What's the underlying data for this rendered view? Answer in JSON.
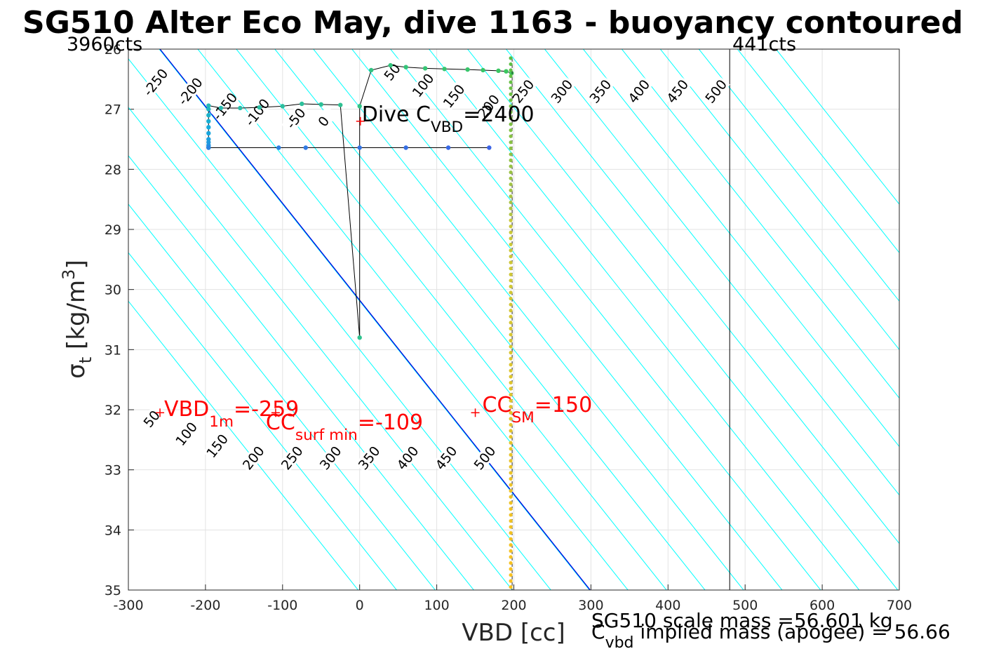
{
  "chart_data": {
    "type": "scatter",
    "title": "SG510 Alter Eco May, dive 1163 - buoyancy contoured",
    "xlabel": "VBD [cc]",
    "ylabel_main": "σ",
    "ylabel_sub": "t",
    "ylabel_unit": "[kg/m",
    "ylabel_sup": "3",
    "ylabel_close": "]",
    "xlim": [
      -300,
      700
    ],
    "ylim": [
      26,
      35
    ],
    "y_reversed": true,
    "grid": true,
    "xticks": [
      -300,
      -200,
      -100,
      0,
      100,
      200,
      300,
      400,
      500,
      600,
      700
    ],
    "yticks": [
      26,
      27,
      28,
      29,
      30,
      31,
      32,
      33,
      34,
      35
    ],
    "top_labels": {
      "left": "3960cts",
      "right": "441cts"
    },
    "count_line_x": 480,
    "colors": {
      "contour": "#00ffff",
      "magenta": "#b22de0",
      "blue": "#0000dd",
      "track": "#000000",
      "red": "#ff0000",
      "dashed": "#222222"
    },
    "contours": {
      "slope_vbd_per_sigma": 62,
      "levels": [
        -250,
        -200,
        -150,
        -100,
        -50,
        0,
        50,
        100,
        150,
        200,
        250,
        300,
        350,
        400,
        450,
        500
      ],
      "magenta_levels": [
        0,
        200
      ],
      "blue_level": -259,
      "upper_labels": [
        {
          "text": "-250",
          "vbd": -265,
          "sigma": 26.55
        },
        {
          "text": "-200",
          "vbd": -220,
          "sigma": 26.7
        },
        {
          "text": "-150",
          "vbd": -175,
          "sigma": 26.95
        },
        {
          "text": "-100",
          "vbd": -133,
          "sigma": 27.05
        },
        {
          "text": "-50",
          "vbd": -83,
          "sigma": 27.15
        },
        {
          "text": "0",
          "vbd": -47,
          "sigma": 27.2
        },
        {
          "text": "50",
          "vbd": 42,
          "sigma": 26.38
        },
        {
          "text": "100",
          "vbd": 82,
          "sigma": 26.6
        },
        {
          "text": "150",
          "vbd": 122,
          "sigma": 26.78
        },
        {
          "text": "200",
          "vbd": 167,
          "sigma": 26.95
        },
        {
          "text": "250",
          "vbd": 212,
          "sigma": 26.7
        },
        {
          "text": "300",
          "vbd": 262,
          "sigma": 26.7
        },
        {
          "text": "350",
          "vbd": 312,
          "sigma": 26.7
        },
        {
          "text": "400",
          "vbd": 362,
          "sigma": 26.7
        },
        {
          "text": "450",
          "vbd": 412,
          "sigma": 26.7
        },
        {
          "text": "500",
          "vbd": 462,
          "sigma": 26.7
        }
      ],
      "lower_labels": [
        {
          "text": "50",
          "vbd": -270,
          "sigma": 32.15
        },
        {
          "text": "100",
          "vbd": -225,
          "sigma": 32.4
        },
        {
          "text": "150",
          "vbd": -185,
          "sigma": 32.6
        },
        {
          "text": "200",
          "vbd": -138,
          "sigma": 32.8
        },
        {
          "text": "250",
          "vbd": -88,
          "sigma": 32.8
        },
        {
          "text": "300",
          "vbd": -38,
          "sigma": 32.8
        },
        {
          "text": "350",
          "vbd": 12,
          "sigma": 32.8
        },
        {
          "text": "400",
          "vbd": 62,
          "sigma": 32.8
        },
        {
          "text": "450",
          "vbd": 112,
          "sigma": 32.8
        },
        {
          "text": "500",
          "vbd": 162,
          "sigma": 32.8
        }
      ]
    },
    "track": {
      "vbd": [
        197,
        190,
        180,
        160,
        140,
        110,
        85,
        60,
        40,
        15,
        0,
        0,
        0,
        -25,
        -50,
        -75,
        -100,
        -130,
        -155,
        -180,
        -196,
        -196,
        -196,
        -196,
        -196,
        -196,
        -196,
        -196,
        -196,
        -196,
        -196,
        -196,
        -105,
        -70,
        0,
        60,
        115,
        168
      ],
      "sigma": [
        26.4,
        26.37,
        26.36,
        26.35,
        26.34,
        26.33,
        26.32,
        26.3,
        26.27,
        26.35,
        26.95,
        28.5,
        30.8,
        26.93,
        26.92,
        26.91,
        26.95,
        26.97,
        26.98,
        26.98,
        26.94,
        27.0,
        27.1,
        27.2,
        27.3,
        27.4,
        27.5,
        27.55,
        27.6,
        27.63,
        27.64,
        27.64,
        27.64,
        27.64,
        27.64,
        27.64,
        27.64,
        27.64
      ],
      "hidden_points": [
        11
      ]
    },
    "vertical_trace": {
      "vbd": 196,
      "sigma_start": 26.15,
      "sigma_end": 35.0,
      "step": 0.1
    },
    "annotations": {
      "dive_cvbd": {
        "text": "Dive C",
        "sub": "VBD",
        "suffix": "=2400",
        "vbd": 1,
        "sigma": 27.2
      },
      "vbd_1m": {
        "text": "VBD",
        "sub": "1m",
        "suffix": "=-259",
        "vbd": -259,
        "sigma": 32.05
      },
      "cc_surf_min": {
        "text": "CC",
        "sub": "surf min",
        "suffix": "=-109",
        "vbd": -109,
        "sigma": 32.05
      },
      "cc_sm": {
        "text": "CC",
        "sub": "SM",
        "suffix": "=150",
        "vbd": 150,
        "sigma": 32.05
      }
    }
  },
  "footer": {
    "scale_mass": "SG510 scale mass =56.601 kg",
    "implied_prefix": "C",
    "implied_sub": "vbd",
    "implied_rest": " implied mass (apogee) = 56.66"
  }
}
